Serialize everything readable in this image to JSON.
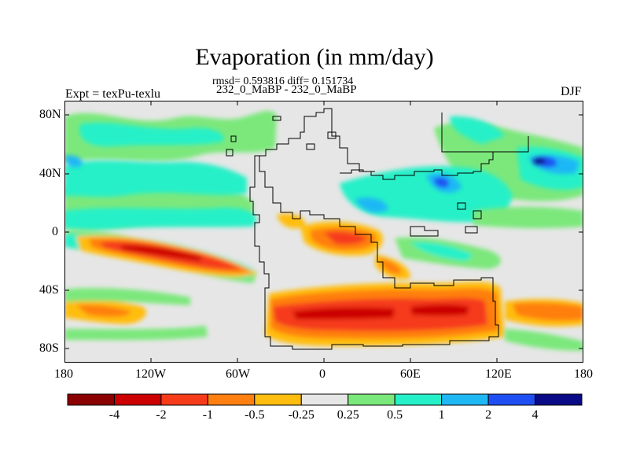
{
  "title": "Evaporation (in mm/day)",
  "stats_line": "rmsd= 0.593816 diff= 0.151734",
  "subtitle": "232_0_MaBP - 232_0_MaBP",
  "left_label": "Expt = texPu-texlu",
  "right_label": "DJF",
  "lat_ticks": [
    "80N",
    "40N",
    "0",
    "40S",
    "80S"
  ],
  "lon_ticks": [
    "180",
    "120W",
    "60W",
    "0",
    "60E",
    "120E",
    "180"
  ],
  "colorbar": {
    "labels": [
      "-4",
      "-2",
      "-1",
      "-0.5",
      "-0.25",
      "0.25",
      "0.5",
      "1",
      "2",
      "4"
    ],
    "colors": [
      "#8b0000",
      "#cc0000",
      "#f53b1a",
      "#ff7f10",
      "#ffbd10",
      "#e6e6e6",
      "#7be87b",
      "#26f0c8",
      "#1fb8f5",
      "#1f4ff2",
      "#0a0a87"
    ]
  },
  "colors": {
    "land_neutral": "#e6e6e6",
    "coastline": "#000000"
  }
}
